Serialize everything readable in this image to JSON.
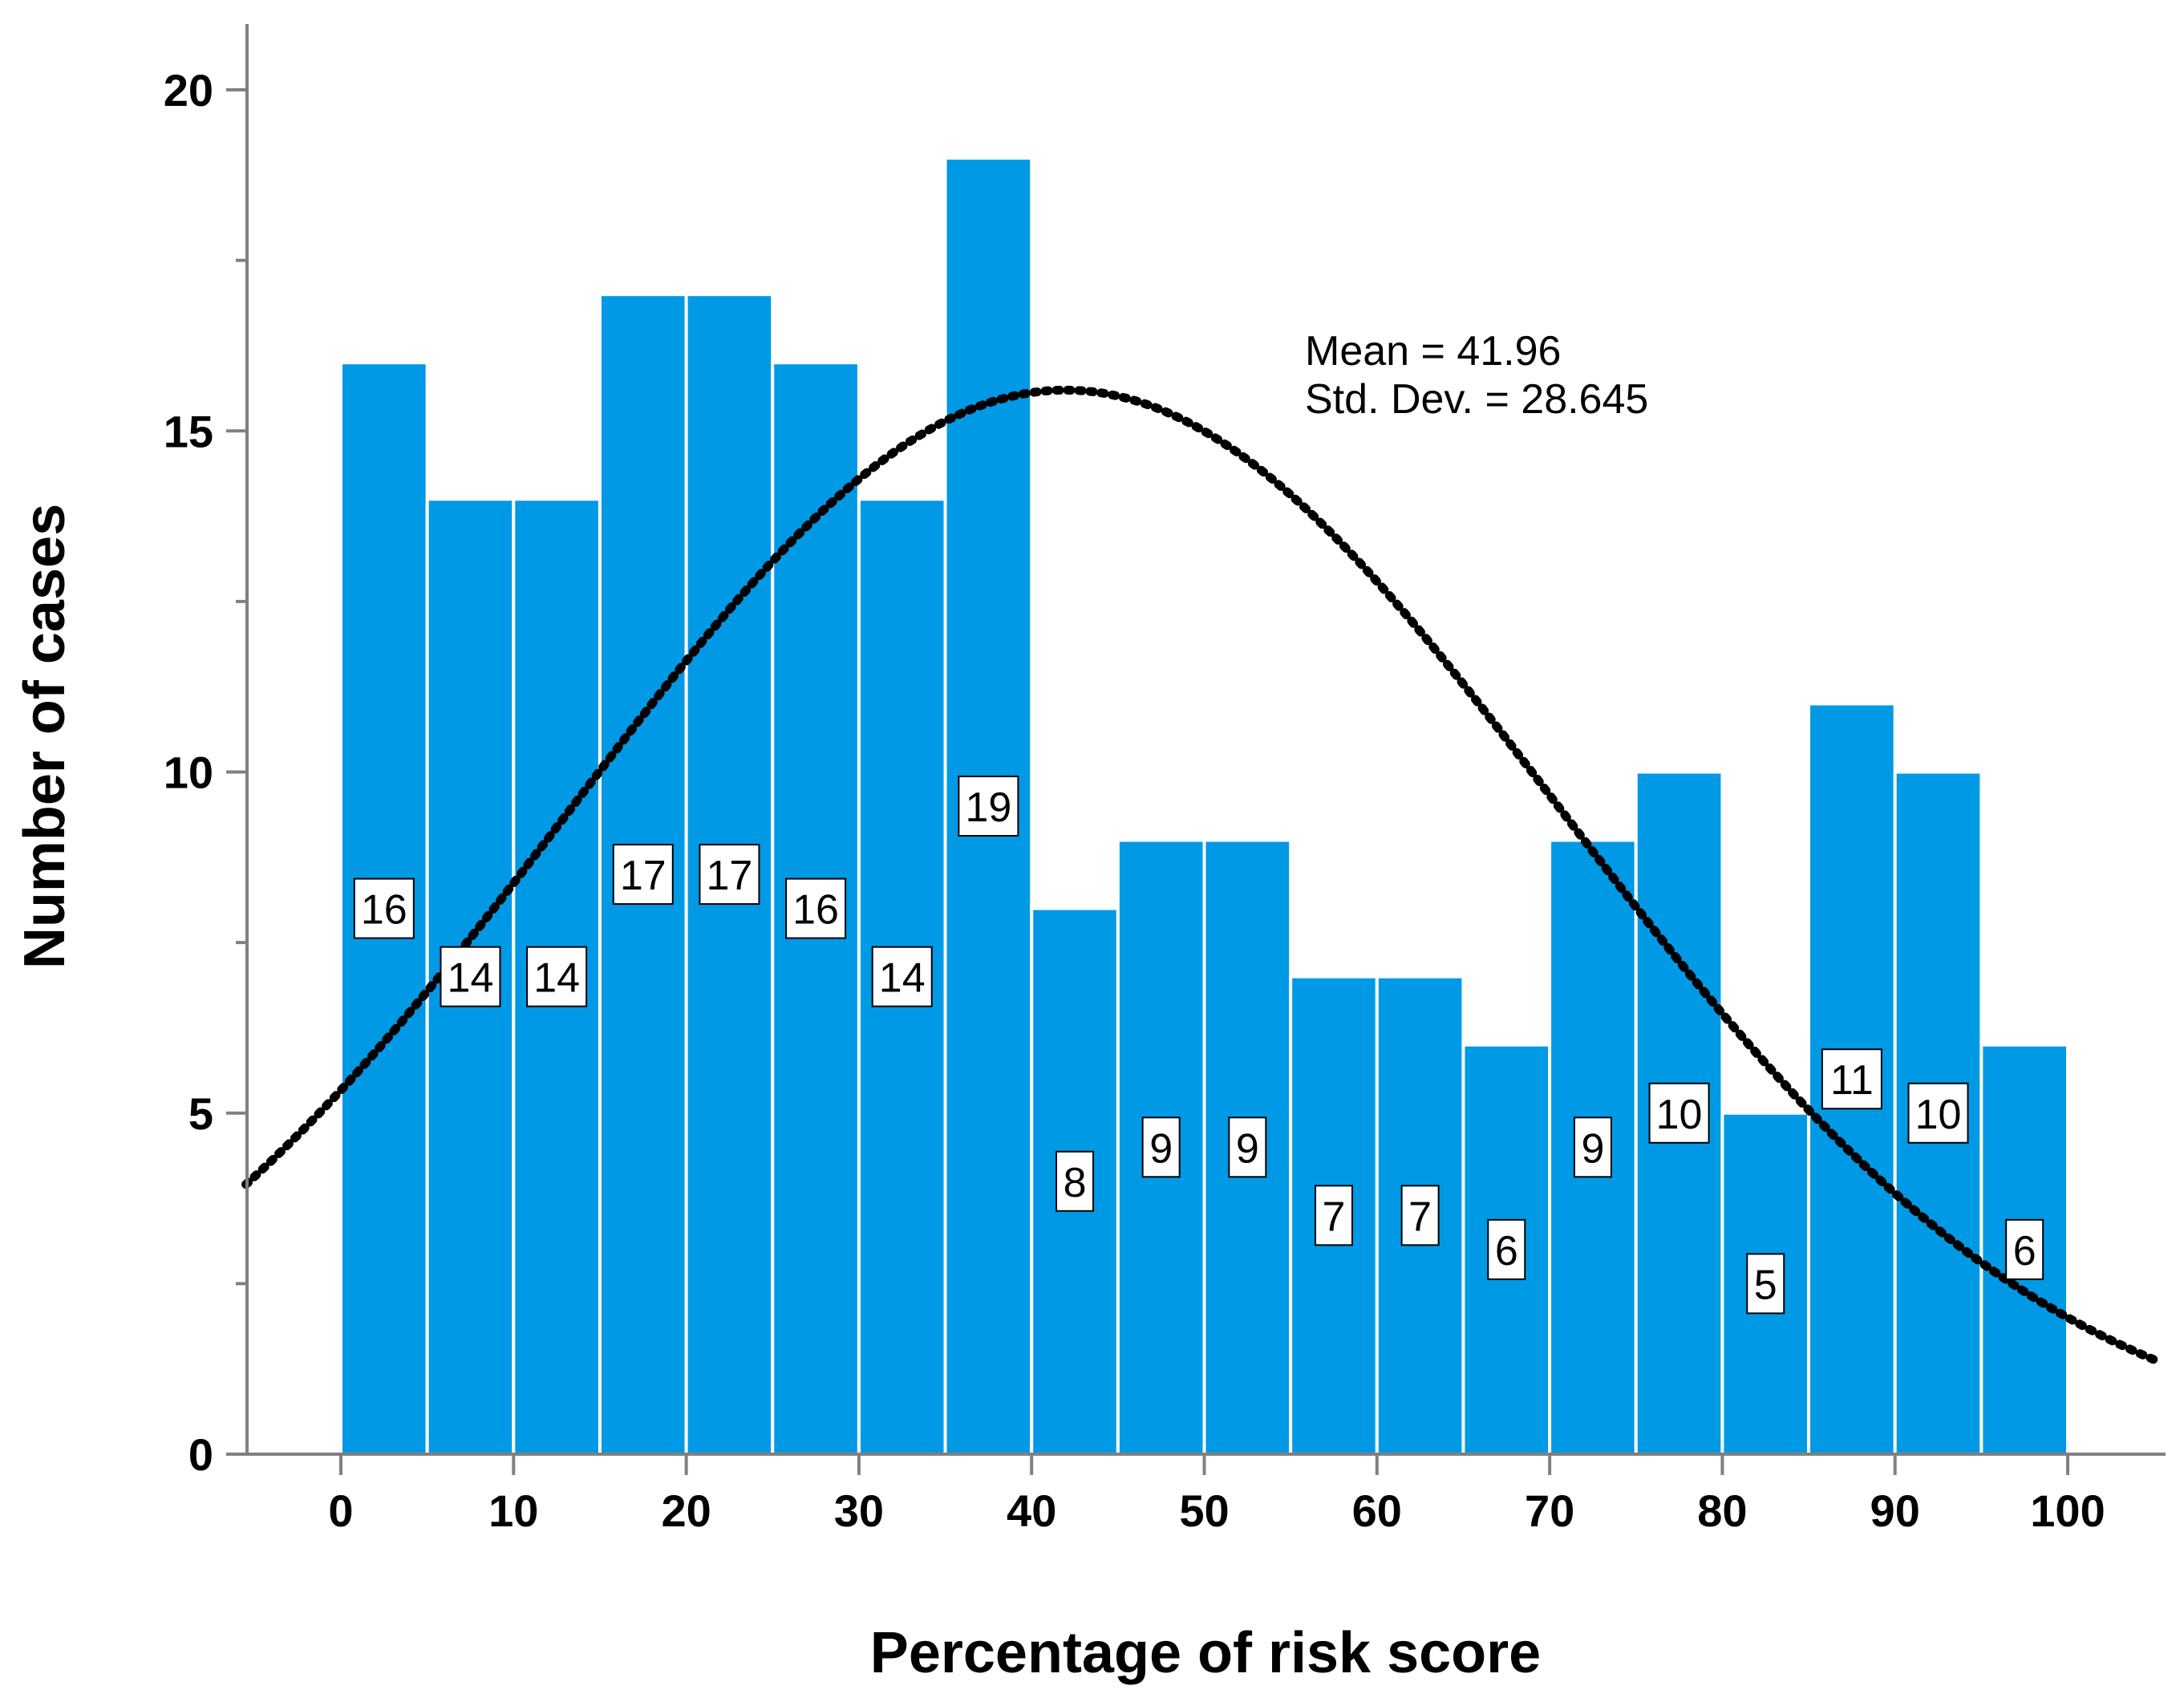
{
  "chart_data": {
    "type": "bar",
    "subtype": "histogram",
    "xlabel": "Percentage of risk score",
    "ylabel": "Number of cases",
    "xlim": [
      -5.5,
      105
    ],
    "ylim": [
      0,
      21
    ],
    "x_ticks": [
      0,
      10,
      20,
      30,
      40,
      50,
      60,
      70,
      80,
      90,
      100
    ],
    "x_tick_labels": [
      "0",
      "10",
      "20",
      "30",
      "40",
      "50",
      "60",
      "70",
      "80",
      "90",
      "100"
    ],
    "y_ticks": [
      0,
      5,
      10,
      15,
      20
    ],
    "y_tick_labels": [
      "0",
      "5",
      "10",
      "15",
      "20"
    ],
    "y_minor_ticks": [
      2.5,
      7.5,
      12.5,
      17.5
    ],
    "bin_width": 5,
    "bin_starts": [
      0,
      5,
      10,
      15,
      20,
      25,
      30,
      35,
      40,
      45,
      50,
      55,
      60,
      65,
      70,
      75,
      80,
      85,
      90,
      95
    ],
    "values": [
      16,
      14,
      14,
      17,
      17,
      16,
      14,
      19,
      8,
      9,
      9,
      7,
      7,
      6,
      9,
      10,
      5,
      11,
      10,
      6
    ],
    "data_labels": [
      "16",
      "14",
      "14",
      "17",
      "17",
      "16",
      "14",
      "19",
      "8",
      "9",
      "9",
      "7",
      "7",
      "6",
      "9",
      "10",
      "5",
      "11",
      "10",
      "6"
    ],
    "normal_curve": {
      "mean": 41.96,
      "std_dev": 28.645,
      "style": "dotted"
    },
    "stats_lines": [
      "Mean = 41.96",
      "Std. Dev. = 28.645"
    ],
    "grid": false,
    "legend": "none",
    "colors": {
      "bar": "#0099E6",
      "bar_edge": "#ffffff",
      "curve": "#000000",
      "axis": "#808080"
    }
  }
}
